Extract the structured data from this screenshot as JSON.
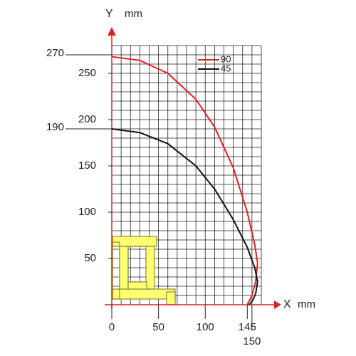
{
  "chart_data": {
    "type": "line",
    "x_label": "X",
    "x_unit": "mm",
    "y_label": "Y",
    "y_unit": "mm",
    "xlim": [
      0,
      160
    ],
    "ylim": [
      0,
      280
    ],
    "xticks": [
      0,
      50,
      100,
      145,
      150
    ],
    "yticks": [
      50,
      100,
      150,
      200,
      250
    ],
    "y_markers": [
      190,
      270
    ],
    "grid": true,
    "grid_step": 10,
    "axis_color": "#e02020",
    "legend": "upper right",
    "series": [
      {
        "name": "90",
        "color": "#e02020",
        "x": [
          0,
          30,
          60,
          90,
          110,
          130,
          145,
          153,
          156,
          154,
          150,
          145
        ],
        "values": [
          268,
          264,
          250,
          222,
          192,
          148,
          100,
          65,
          45,
          25,
          10,
          0
        ]
      },
      {
        "name": "45",
        "color": "#111111",
        "x": [
          0,
          30,
          60,
          90,
          110,
          130,
          145,
          153,
          156,
          154,
          151,
          147
        ],
        "values": [
          190,
          186,
          174,
          150,
          125,
          92,
          62,
          40,
          25,
          12,
          5,
          0
        ]
      }
    ]
  }
}
